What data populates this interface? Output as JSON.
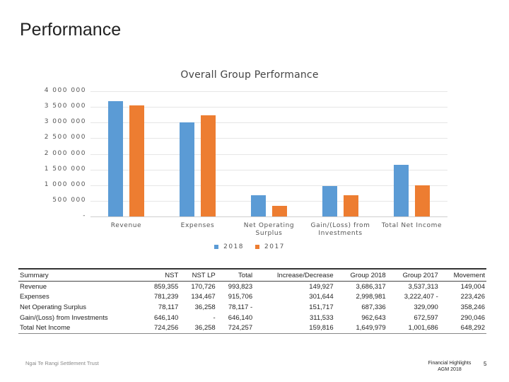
{
  "slide": {
    "title": "Performance"
  },
  "chart_data": {
    "type": "bar",
    "title": "Overall Group Performance",
    "categories": [
      "Revenue",
      "Expenses",
      "Net Operating\nSurplus",
      "Gain/(Loss) from\nInvestments",
      "Total Net Income"
    ],
    "series": [
      {
        "name": "2018",
        "color": "#5b9bd5",
        "values": [
          3686317,
          2998981,
          687336,
          962643,
          1649979
        ]
      },
      {
        "name": "2017",
        "color": "#ed7d31",
        "values": [
          3537313,
          3222407,
          329090,
          672597,
          1001686
        ]
      }
    ],
    "ylim": [
      0,
      4000000
    ],
    "yticks": [
      4000000,
      3500000,
      3000000,
      2500000,
      2000000,
      1500000,
      1000000,
      500000,
      0
    ],
    "ytick_labels": [
      "4 000 000",
      "3 500 000",
      "3 000 000",
      "2 500 000",
      "2 000 000",
      "1 500 000",
      "1 000 000",
      "500 000",
      "-"
    ],
    "xlabel": "",
    "ylabel": "",
    "legend_position": "bottom",
    "grid": true
  },
  "table": {
    "headers": [
      "Summary",
      "NST",
      "NST LP",
      "Total",
      "Increase/Decrease",
      "Group 2018",
      "Group 2017",
      "Movement"
    ],
    "rows": [
      [
        "Revenue",
        "859,355",
        "170,726",
        "993,823",
        "149,927",
        "3,686,317",
        "3,537,313",
        "149,004"
      ],
      [
        "Expenses",
        "781,239",
        "134,467",
        "915,706",
        "301,644",
        "2,998,981",
        "3,222,407 -",
        "223,426"
      ],
      [
        "Net Operating Surplus",
        "78,117",
        "36,258",
        "78,117 -",
        "151,717",
        "687,336",
        "329,090",
        "358,246"
      ],
      [
        "Gain/(Loss) from Investments",
        "646,140",
        "-",
        "646,140",
        "311,533",
        "962,643",
        "672,597",
        "290,046"
      ],
      [
        "Total Net Income",
        "724,256",
        "36,258",
        "724,257",
        "159,816",
        "1,649,979",
        "1,001,686",
        "648,292"
      ]
    ]
  },
  "footer": {
    "left": "Ngai Te Rangi Settlement Trust",
    "right_line1": "Financial Highlights",
    "right_line2": "AGM 2018",
    "page": "5"
  }
}
